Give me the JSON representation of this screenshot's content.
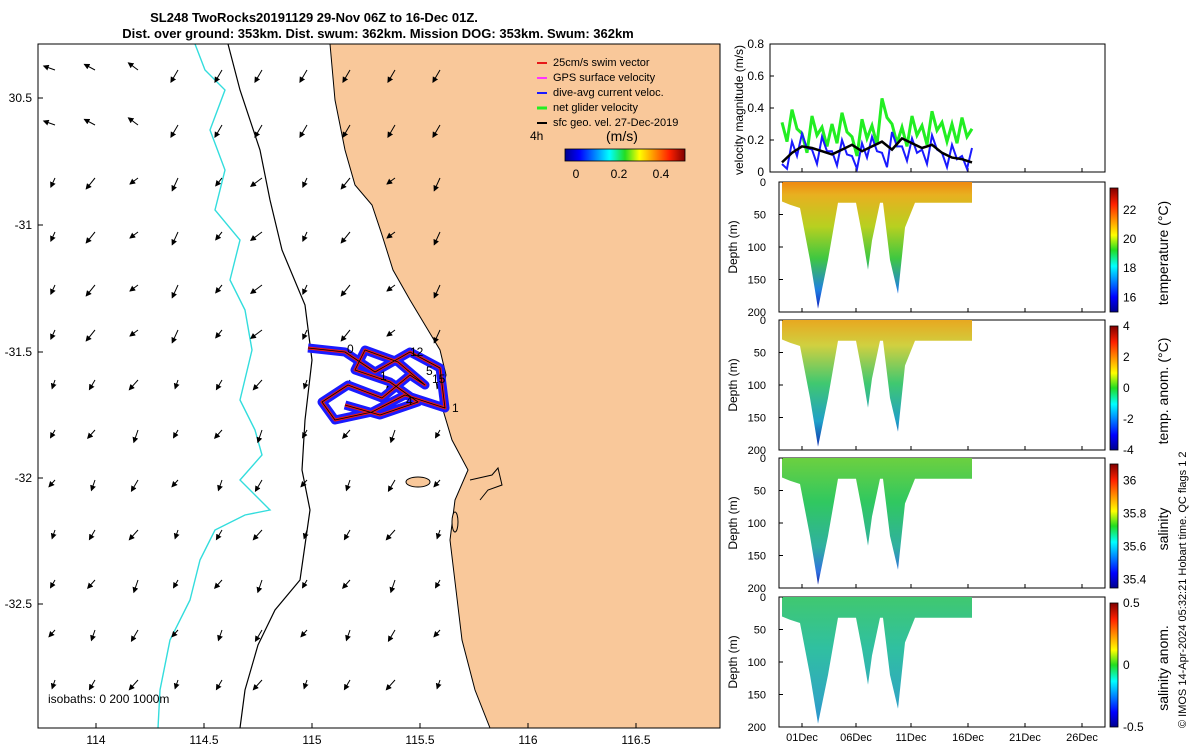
{
  "title_line1": "SL248 TwoRocks20191129 29-Nov 06Z to 16-Dec 01Z.",
  "title_line2": "Dist. over ground: 353km. Dist. swum: 362km. Mission DOG: 353km. Swum: 362km",
  "colors": {
    "land": "#f9c89a",
    "isobath_shallow": "#000000",
    "isobath_deep": "#33dddd",
    "track_outer": "#1a1aff",
    "track_inner": "#e61919",
    "speed_green": "#22ee22",
    "dive_blue": "#1a1aff",
    "sfc_black": "#000000"
  },
  "map": {
    "x_ticks": [
      "114",
      "114.5",
      "115",
      "115.5",
      "116",
      "116.5"
    ],
    "y_ticks": [
      "30.5",
      "-31",
      "-31.5",
      "-32",
      "-32.5"
    ],
    "legend": [
      "25cm/s swim vector",
      "GPS surface velocity",
      "dive-avg current veloc.",
      "net glider velocity",
      "sfc geo. vel. 27-Dec-2019"
    ],
    "legend_note": "4h",
    "colorbar_label": "(m/s)",
    "colorbar_ticks": [
      "0",
      "0.2",
      "0.4"
    ],
    "isobath_note": "isobaths: 0   200  1000m",
    "track_labels": [
      "0",
      "12",
      "5",
      "15",
      "1",
      "4",
      "1"
    ]
  },
  "chart_data": [
    {
      "type": "line",
      "title": "",
      "xlabel": "",
      "ylabel": "velocity magnitude (m/s)",
      "ylim": [
        0,
        0.8
      ],
      "yticks": [
        "0",
        "0.2",
        "0.4",
        "0.6",
        "0.8"
      ],
      "xrange_days": [
        "29-Nov",
        "16-Dec"
      ],
      "series": [
        {
          "name": "net glider velocity",
          "values": [
            0.31,
            0.39,
            0.24,
            0.35,
            0.28,
            0.3,
            0.37,
            0.22,
            0.33,
            0.29,
            0.46,
            0.3,
            0.28,
            0.35,
            0.29,
            0.38,
            0.31,
            0.3,
            0.34,
            0.27
          ]
        },
        {
          "name": "dive-avg current veloc.",
          "values": [
            0.05,
            0.19,
            0.24,
            0.14,
            0.22,
            0.13,
            0.2,
            0.1,
            0.18,
            0.22,
            0.12,
            0.25,
            0.16,
            0.21,
            0.14,
            0.23,
            0.12,
            0.17,
            0.1,
            0.15
          ]
        },
        {
          "name": "sfc geo. vel.",
          "values": [
            0.06,
            0.12,
            0.16,
            0.15,
            0.13,
            0.11,
            0.14,
            0.17,
            0.13,
            0.16,
            0.19,
            0.14,
            0.21,
            0.18,
            0.15,
            0.17,
            0.12,
            0.09,
            0.08,
            0.06
          ]
        }
      ]
    },
    {
      "type": "heatmap",
      "ylabel": "Depth (m)",
      "colorbar_label": "temperature (°C)",
      "ylim": [
        200,
        0
      ],
      "yticks": [
        "0",
        "50",
        "100",
        "150",
        "200"
      ],
      "colorbar_ticks": [
        "16",
        "18",
        "20",
        "22"
      ],
      "colorbar_range": [
        15,
        23.5
      ],
      "surface_value": 22.6,
      "deep_value": 16.0
    },
    {
      "type": "heatmap",
      "ylabel": "Depth (m)",
      "colorbar_label": "temp. anom. (°C)",
      "ylim": [
        200,
        0
      ],
      "yticks": [
        "0",
        "50",
        "100",
        "150",
        "200"
      ],
      "colorbar_ticks": [
        "4",
        "2",
        "0",
        "-2",
        "-4"
      ],
      "colorbar_range": [
        -4,
        4
      ],
      "surface_value": 1.5,
      "deep_value": -1.0
    },
    {
      "type": "heatmap",
      "ylabel": "Depth (m)",
      "colorbar_label": "salinity",
      "ylim": [
        200,
        0
      ],
      "yticks": [
        "0",
        "50",
        "100",
        "150",
        "200"
      ],
      "colorbar_ticks": [
        "36",
        "35.8",
        "35.6",
        "35.4"
      ],
      "colorbar_range": [
        35.35,
        36.1
      ],
      "surface_value": 35.78,
      "deep_value": 35.55
    },
    {
      "type": "heatmap",
      "ylabel": "Depth (m)",
      "colorbar_label": "salinity anom.",
      "ylim": [
        200,
        0
      ],
      "yticks": [
        "0",
        "50",
        "100",
        "150",
        "200"
      ],
      "colorbar_ticks": [
        "0.5",
        "0",
        "-0.5"
      ],
      "colorbar_range": [
        -0.5,
        0.5
      ],
      "surface_value": 0.08,
      "deep_value": -0.12
    }
  ],
  "time_ticks": [
    "01Dec",
    "06Dec",
    "11Dec",
    "16Dec",
    "21Dec",
    "26Dec"
  ],
  "footer": "© IMOS 14-Apr-2024 05:32:21 Hobart time. QC flags 1  2"
}
